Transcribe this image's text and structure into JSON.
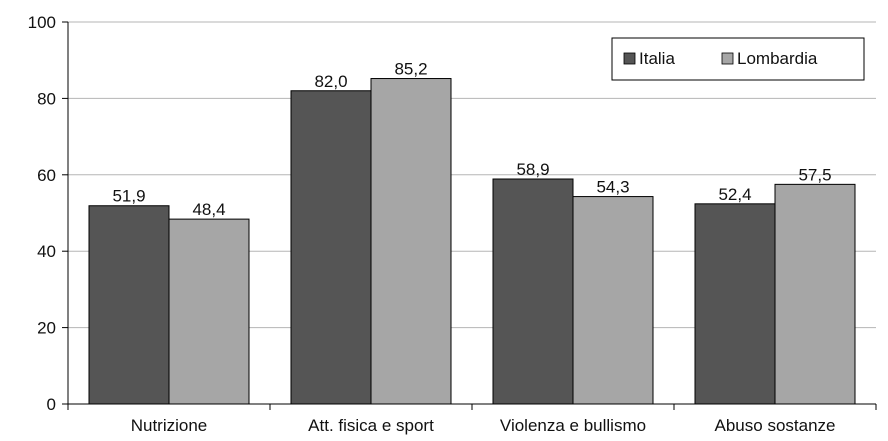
{
  "chart_data": {
    "type": "bar",
    "title": "",
    "xlabel": "",
    "ylabel": "",
    "categories": [
      "Nutrizione",
      "Att. fisica e sport",
      "Violenza e bullismo",
      "Abuso sostanze"
    ],
    "series": [
      {
        "name": "Italia",
        "values": [
          51.9,
          82.0,
          58.9,
          52.4
        ],
        "labels": [
          "51,9",
          "82,0",
          "58,9",
          "52,4"
        ],
        "color": "#555555"
      },
      {
        "name": "Lombardia",
        "values": [
          48.4,
          85.2,
          54.3,
          57.5
        ],
        "labels": [
          "48,4",
          "85,2",
          "54,3",
          "57,5"
        ],
        "color": "#a6a6a6"
      }
    ],
    "ylim": [
      0,
      100
    ],
    "yticks": [
      0,
      20,
      40,
      60,
      80,
      100
    ],
    "grid": true,
    "legend_position": "top-right"
  }
}
